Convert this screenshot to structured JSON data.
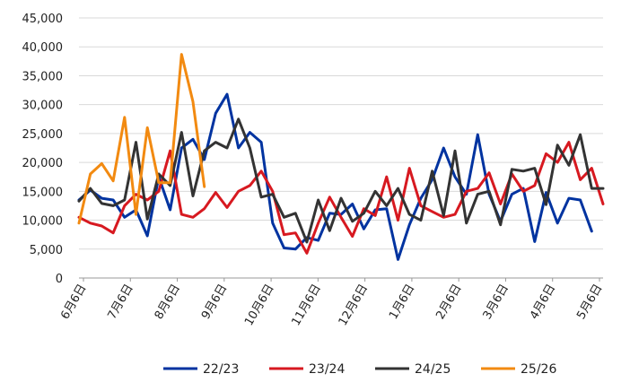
{
  "chart_data": {
    "type": "line",
    "title": "",
    "xlabel": "",
    "ylabel": "",
    "ylim": [
      0,
      45000
    ],
    "yticks": [
      "0",
      "5,000",
      "10,000",
      "15,000",
      "20,000",
      "25,000",
      "30,000",
      "35,000",
      "40,000",
      "45,000"
    ],
    "xticks": [
      "6月6日",
      "7月6日",
      "8月6日",
      "9月6日",
      "10月6日",
      "11月6日",
      "12月6日",
      "1月6日",
      "2月6日",
      "3月6日",
      "4月6日",
      "5月6日"
    ],
    "grid": true,
    "legend_position": "bottom",
    "series": [
      {
        "name": "22/23",
        "color": "#0033a0",
        "values": [
          13500,
          15200,
          13800,
          13500,
          10500,
          11800,
          7300,
          17500,
          11800,
          22500,
          24000,
          20500,
          28500,
          31800,
          22500,
          25200,
          23500,
          9500,
          5200,
          5000,
          7000,
          6500,
          11200,
          11000,
          12800,
          8500,
          11800,
          12000,
          3200,
          9200,
          13800,
          17000,
          22500,
          17500,
          14500,
          24800,
          14500,
          9800,
          14500,
          15500,
          6300,
          14800,
          9500,
          13800,
          13500,
          8100
        ]
      },
      {
        "name": "23/24",
        "color": "#d71920",
        "values": [
          10500,
          9500,
          9000,
          7800,
          12500,
          14500,
          13500,
          15000,
          22000,
          11000,
          10500,
          12000,
          14800,
          12200,
          15000,
          16000,
          18500,
          15000,
          7500,
          7800,
          4300,
          9500,
          14000,
          10500,
          7200,
          12000,
          10800,
          17500,
          10000,
          19000,
          12500,
          11500,
          10500,
          11000,
          15000,
          15500,
          18200,
          12800,
          18000,
          15000,
          16000,
          21500,
          20000,
          23500,
          17000,
          19000,
          12800
        ]
      },
      {
        "name": "24/25",
        "color": "#333333",
        "values": [
          13300,
          15500,
          12900,
          12500,
          13500,
          23500,
          10200,
          18000,
          16000,
          25200,
          14200,
          22000,
          23500,
          22500,
          27500,
          22500,
          14000,
          14500,
          10500,
          11200,
          6200,
          13500,
          8200,
          13800,
          9800,
          11200,
          15000,
          12500,
          15500,
          11000,
          10000,
          18500,
          10800,
          22000,
          9500,
          14500,
          15000,
          9200,
          18800,
          18500,
          19000,
          12700,
          23000,
          19500,
          24800,
          15500,
          15500
        ]
      },
      {
        "name": "25/26",
        "color": "#f28a11",
        "values": [
          9500,
          18000,
          19800,
          16800,
          27800,
          11000,
          26000,
          16500,
          16500,
          38700,
          30500,
          15800
        ]
      }
    ]
  }
}
